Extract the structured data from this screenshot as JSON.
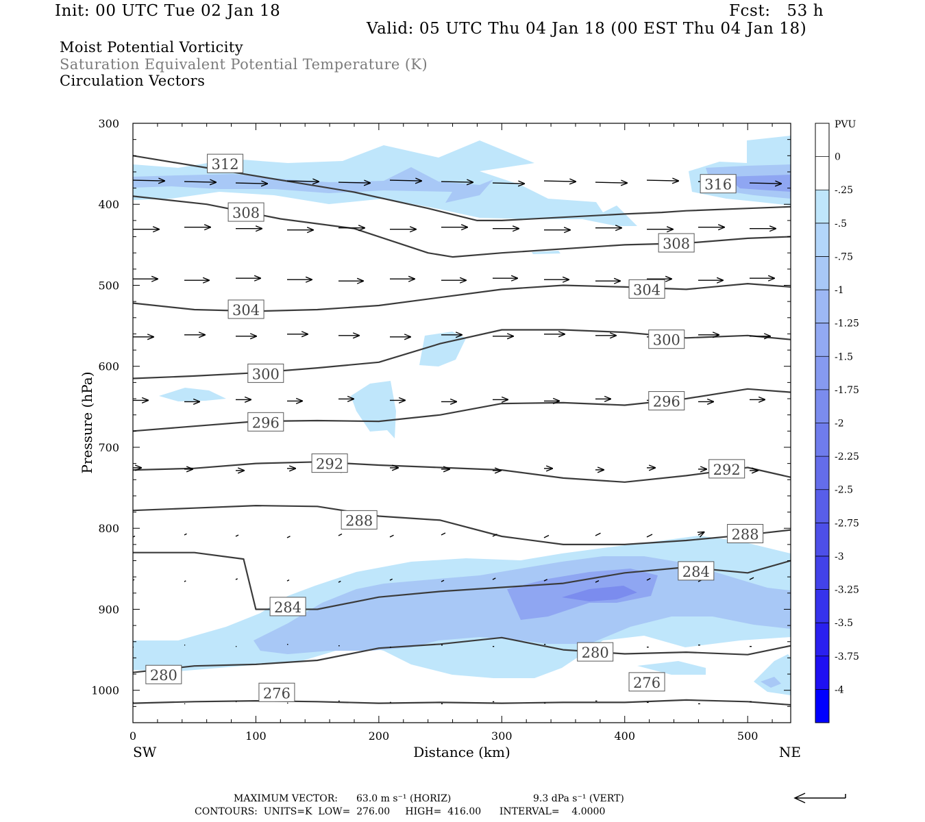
{
  "header": {
    "init": "Init: 00 UTC Tue 02 Jan 18",
    "fcst": "Fcst:   53 h",
    "valid": "Valid: 05 UTC Thu 04 Jan 18 (00 EST Thu 04 Jan 18)",
    "title1": "Moist Potential Vorticity",
    "title2": "Saturation Equivalent Potential Temperature (K)",
    "title3": "Circulation Vectors"
  },
  "colors": {
    "contour": "#3a3a3a",
    "arrow": "#000000",
    "pv_fill_1": "#bfe6fb",
    "pv_fill_2": "#a8c8f6",
    "pv_fill_3": "#8fa6f2",
    "gray_text": "#7c7c7c"
  },
  "chart_data": {
    "type": "contour",
    "xlabel": "Distance (km)",
    "ylabel": "Pressure (hPa)",
    "xlim": [
      0,
      535
    ],
    "ylim": [
      300,
      1040
    ],
    "y_scale": "linear, inverted",
    "x_ticks": [
      "0",
      "100",
      "200",
      "300",
      "400",
      "500"
    ],
    "y_ticks": [
      "300",
      "400",
      "500",
      "600",
      "700",
      "800",
      "900",
      "1000"
    ],
    "x_end_labels": {
      "left": "SW",
      "right": "NE"
    },
    "contour_variable": "Saturation Equivalent Potential Temperature (K)",
    "contour_units": "K",
    "contour_low": 276.0,
    "contour_high": 416.0,
    "contour_interval": 4.0,
    "contours": [
      {
        "label": "312",
        "x": [
          0,
          60,
          120,
          180,
          240,
          280,
          300,
          400,
          430,
          450,
          500,
          535
        ],
        "y": [
          340,
          355,
          370,
          385,
          405,
          420,
          420,
          412,
          410,
          408,
          405,
          403
        ]
      },
      {
        "label": "308",
        "x": [
          0,
          60,
          120,
          180,
          240,
          260,
          300,
          400,
          450,
          500,
          535
        ],
        "y": [
          390,
          400,
          418,
          430,
          460,
          465,
          460,
          450,
          448,
          442,
          440
        ]
      },
      {
        "label": "304",
        "x": [
          0,
          50,
          100,
          150,
          200,
          250,
          300,
          350,
          400,
          450,
          500,
          535
        ],
        "y": [
          522,
          530,
          532,
          530,
          525,
          515,
          505,
          500,
          502,
          505,
          498,
          502
        ]
      },
      {
        "label": "300",
        "x": [
          0,
          50,
          100,
          150,
          200,
          250,
          300,
          350,
          400,
          450,
          500,
          535
        ],
        "y": [
          615,
          612,
          608,
          602,
          595,
          572,
          555,
          555,
          558,
          565,
          562,
          567
        ]
      },
      {
        "label": "296",
        "x": [
          0,
          50,
          100,
          150,
          200,
          250,
          300,
          350,
          400,
          450,
          500,
          535
        ],
        "y": [
          680,
          674,
          668,
          667,
          668,
          660,
          646,
          645,
          648,
          640,
          628,
          632
        ]
      },
      {
        "label": "292",
        "x": [
          0,
          50,
          100,
          150,
          200,
          250,
          300,
          350,
          400,
          450,
          500,
          535
        ],
        "y": [
          728,
          726,
          720,
          718,
          722,
          725,
          728,
          738,
          743,
          735,
          725,
          737
        ]
      },
      {
        "label": "288",
        "x": [
          0,
          50,
          100,
          150,
          200,
          250,
          300,
          350,
          400,
          450,
          500,
          535
        ],
        "y": [
          778,
          775,
          772,
          773,
          785,
          790,
          810,
          820,
          820,
          815,
          808,
          802
        ]
      },
      {
        "label": "284",
        "x": [
          0,
          50,
          90,
          100,
          150,
          200,
          250,
          300,
          350,
          400,
          450,
          500,
          535
        ],
        "y": [
          830,
          830,
          838,
          900,
          900,
          885,
          878,
          873,
          868,
          855,
          848,
          855,
          840
        ]
      },
      {
        "label": "280",
        "x": [
          0,
          50,
          100,
          150,
          200,
          250,
          300,
          350,
          400,
          450,
          500,
          535
        ],
        "y": [
          978,
          970,
          968,
          963,
          948,
          943,
          935,
          950,
          955,
          953,
          956,
          945
        ]
      },
      {
        "label": "276",
        "x": [
          0,
          50,
          100,
          150,
          200,
          250,
          300,
          350,
          400,
          450,
          500,
          535
        ],
        "y": [
          1016,
          1014,
          1013,
          1014,
          1016,
          1015,
          1016,
          1015,
          1015,
          1012,
          1014,
          1018
        ]
      }
    ],
    "contour_label_positions": [
      {
        "label": "312",
        "x": 75,
        "y": 350
      },
      {
        "label": "308",
        "x": 92,
        "y": 410
      },
      {
        "label": "308",
        "x": 442,
        "y": 448
      },
      {
        "label": "304",
        "x": 92,
        "y": 530
      },
      {
        "label": "304",
        "x": 418,
        "y": 505
      },
      {
        "label": "300",
        "x": 108,
        "y": 609
      },
      {
        "label": "300",
        "x": 434,
        "y": 567
      },
      {
        "label": "296",
        "x": 108,
        "y": 669
      },
      {
        "label": "296",
        "x": 434,
        "y": 643
      },
      {
        "label": "292",
        "x": 160,
        "y": 720
      },
      {
        "label": "292",
        "x": 483,
        "y": 727
      },
      {
        "label": "288",
        "x": 184,
        "y": 790
      },
      {
        "label": "288",
        "x": 498,
        "y": 807
      },
      {
        "label": "284",
        "x": 126,
        "y": 897
      },
      {
        "label": "284",
        "x": 458,
        "y": 853
      },
      {
        "label": "280",
        "x": 25,
        "y": 981
      },
      {
        "label": "280",
        "x": 376,
        "y": 953
      },
      {
        "label": "276",
        "x": 117,
        "y": 1003
      },
      {
        "label": "276",
        "x": 418,
        "y": 990
      },
      {
        "label": "316",
        "x": 476,
        "y": 375
      }
    ],
    "pv_colorbar": {
      "label": "PVU",
      "levels": [
        "0",
        "-.25",
        "-.5",
        "-.75",
        "-1",
        "-1.25",
        "-1.5",
        "-1.75",
        "-2",
        "-2.25",
        "-2.5",
        "-2.75",
        "-3",
        "-3.25",
        "-3.5",
        "-3.75",
        "-4"
      ],
      "colors": [
        "#ffffff",
        "#ffffff",
        "#bfe6fb",
        "#b3d6fa",
        "#a8c8f6",
        "#9db8f4",
        "#92a9f2",
        "#869af0",
        "#7b8cee",
        "#6f7cec",
        "#646dea",
        "#585ee9",
        "#4d4fe8",
        "#4242e9",
        "#3633ec",
        "#2a20ef",
        "#1e10f2",
        "#0000ff"
      ]
    },
    "max_vector_label": "MAXIMUM VECTOR:",
    "max_vector_horiz": "63.0 m s⁻¹ (HORIZ)",
    "max_vector_vert": "9.3 dPa s⁻¹ (VERT)",
    "contours_text": "CONTOURS:  UNITS=K  LOW=  276.00     HIGH=  416.00      INTERVAL=    4.0000"
  }
}
